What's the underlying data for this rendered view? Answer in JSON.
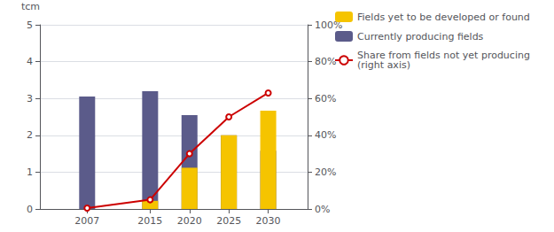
{
  "chart_data": {
    "type": "bar",
    "x": [
      2007,
      2015,
      2020,
      2025,
      2030
    ],
    "xlim": [
      2001,
      2035
    ],
    "xticks": [
      2007,
      2015,
      2020,
      2025,
      2030
    ],
    "ylabel": "tcm",
    "ylim": [
      0,
      5
    ],
    "yticks": [
      0,
      1,
      2,
      3,
      4,
      5
    ],
    "y2lim": [
      0,
      100
    ],
    "y2ticks": [
      {
        "value": 0,
        "label": "0%"
      },
      {
        "value": 20,
        "label": "20%"
      },
      {
        "value": 40,
        "label": "40%"
      },
      {
        "value": 60,
        "label": "60%"
      },
      {
        "value": 80,
        "label": "80%"
      },
      {
        "value": 100,
        "label": "100%"
      }
    ],
    "stacked": true,
    "grid": true,
    "legend": "upper right",
    "series": [
      {
        "name": "Currently producing fields",
        "type": "bar",
        "color": "#5b5b8a",
        "values": [
          3.05,
          3.2,
          2.55,
          2.0,
          1.58
        ]
      },
      {
        "name": "Fields yet to be developed or found",
        "type": "bar",
        "color": "#f5c400",
        "values": [
          0.0,
          0.22,
          1.12,
          2.0,
          2.67
        ]
      },
      {
        "name": "Share from fields not yet producing\n(right axis)",
        "type": "line",
        "axis": "y2",
        "color": "#cc0000",
        "values": [
          0.5,
          5.0,
          30.0,
          50.0,
          63.0
        ]
      }
    ]
  }
}
